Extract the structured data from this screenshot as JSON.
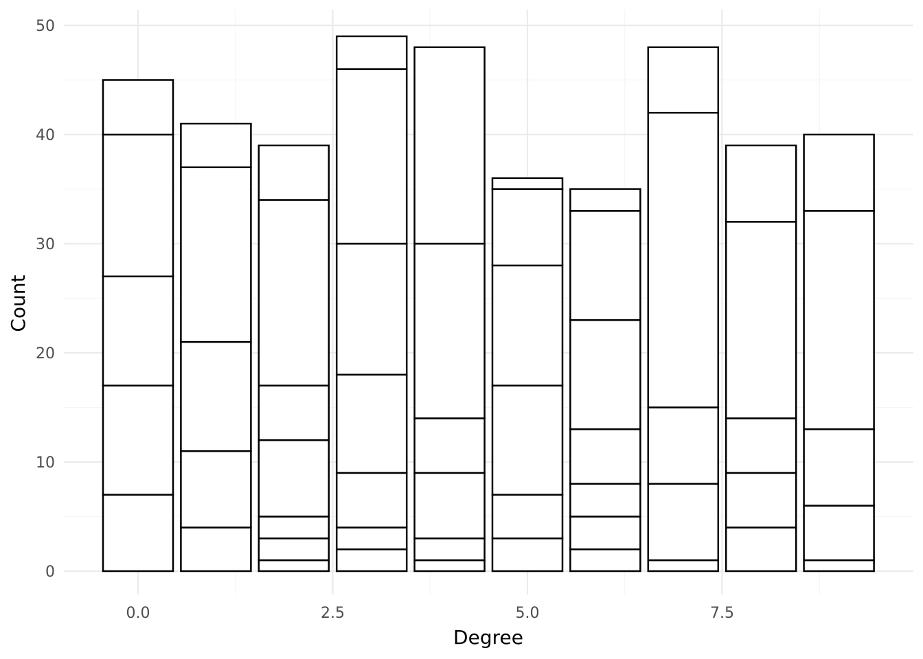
{
  "chart_data": {
    "type": "bar",
    "stacked": true,
    "title": "",
    "xlabel": "Degree",
    "ylabel": "Count",
    "xlim": [
      -1.0,
      9.5
    ],
    "ylim": [
      0,
      50
    ],
    "x_ticks": [
      "0.0",
      "2.5",
      "5.0",
      "7.5"
    ],
    "x_tick_values": [
      0.0,
      2.5,
      5.0,
      7.5
    ],
    "y_ticks": [
      "0",
      "10",
      "20",
      "30",
      "40",
      "50"
    ],
    "y_tick_values": [
      0,
      10,
      20,
      30,
      40,
      50
    ],
    "grid": true,
    "legend": "none",
    "bar_fill": "#ffffff",
    "bar_outline": "#000000",
    "grid_major_color": "#ebebeb",
    "grid_minor_color": "#f5f5f5",
    "x": [
      0,
      1,
      2,
      3,
      4,
      5,
      6,
      7,
      8,
      9
    ],
    "stacks": [
      [
        7,
        10,
        10,
        13,
        5
      ],
      [
        4,
        7,
        10,
        16,
        4
      ],
      [
        1,
        2,
        2,
        7,
        5,
        17,
        5
      ],
      [
        2,
        2,
        5,
        9,
        12,
        16,
        3
      ],
      [
        1,
        2,
        6,
        5,
        16,
        18
      ],
      [
        3,
        4,
        10,
        11,
        7,
        1
      ],
      [
        2,
        3,
        3,
        5,
        10,
        10,
        2
      ],
      [
        1,
        7,
        7,
        27,
        6
      ],
      [
        4,
        5,
        5,
        18,
        7
      ],
      [
        1,
        5,
        7,
        20,
        7
      ]
    ],
    "totals": [
      45,
      41,
      39,
      49,
      48,
      36,
      35,
      48,
      39,
      40
    ]
  }
}
